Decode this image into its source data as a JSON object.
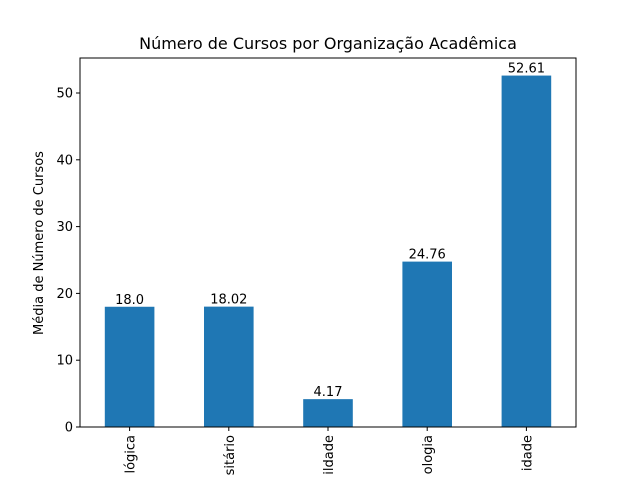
{
  "chart_data": {
    "type": "bar",
    "title": "Número de Cursos por Organização Acadêmica",
    "xlabel": "",
    "ylabel": "Média de Número de Cursos",
    "categories": [
      "lógica",
      "sitário",
      "ildade",
      "ologia",
      "idade"
    ],
    "values": [
      18.0,
      18.02,
      4.17,
      24.76,
      52.61
    ],
    "value_labels": [
      "18.0",
      "18.02",
      "4.17",
      "24.76",
      "52.61"
    ],
    "ylim": [
      0,
      55.24
    ],
    "yticks": [
      0,
      10,
      20,
      30,
      40,
      50
    ],
    "bar_color": "#1f77b4",
    "grid": false,
    "legend": "none"
  }
}
